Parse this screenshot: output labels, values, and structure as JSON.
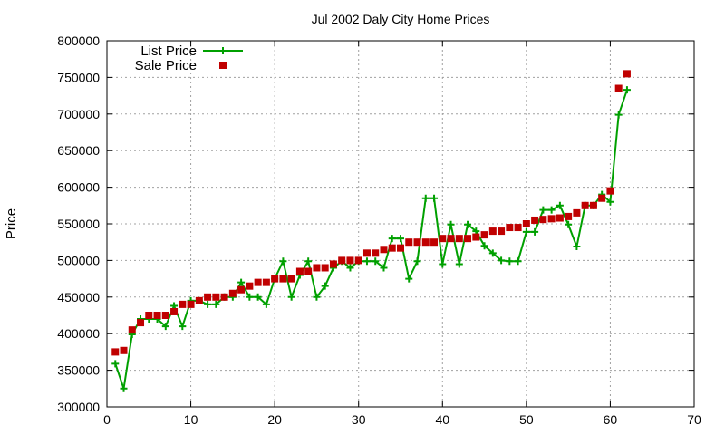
{
  "chart_data": {
    "type": "line",
    "title": "Jul 2002 Daly City Home Prices",
    "xlabel": "",
    "ylabel": "Price",
    "xlim": [
      0,
      70
    ],
    "ylim": [
      300000,
      800000
    ],
    "xticks": [
      0,
      10,
      20,
      30,
      40,
      50,
      60,
      70
    ],
    "yticks": [
      300000,
      350000,
      400000,
      450000,
      500000,
      550000,
      600000,
      650000,
      700000,
      750000,
      800000
    ],
    "grid": true,
    "legend_position": "top-left",
    "series": [
      {
        "name": "List Price",
        "style": "line-plus",
        "color": "#00a000",
        "x": [
          1,
          2,
          3,
          4,
          5,
          6,
          7,
          8,
          9,
          10,
          11,
          12,
          13,
          14,
          15,
          16,
          17,
          18,
          19,
          20,
          21,
          22,
          23,
          24,
          25,
          26,
          27,
          28,
          29,
          30,
          31,
          32,
          33,
          34,
          35,
          36,
          37,
          38,
          39,
          40,
          41,
          42,
          43,
          44,
          45,
          46,
          47,
          48,
          49,
          50,
          51,
          52,
          53,
          54,
          55,
          56,
          57,
          58,
          59,
          60,
          61,
          62
        ],
        "y": [
          359000,
          325000,
          399000,
          420000,
          420000,
          420000,
          410000,
          438000,
          410000,
          445000,
          445000,
          440000,
          440000,
          450000,
          450000,
          470000,
          450000,
          450000,
          440000,
          475000,
          499000,
          450000,
          480000,
          499000,
          450000,
          465000,
          490000,
          499000,
          490000,
          499000,
          499000,
          499000,
          490000,
          530000,
          530000,
          475000,
          499000,
          585000,
          585000,
          495000,
          549000,
          495000,
          549000,
          540000,
          520000,
          510000,
          500000,
          499000,
          499000,
          539000,
          539000,
          569000,
          569000,
          575000,
          549000,
          519000,
          575000,
          575000,
          590000,
          580000,
          699000,
          733000
        ]
      },
      {
        "name": "Sale Price",
        "style": "points-square",
        "color": "#c00000",
        "x": [
          1,
          2,
          3,
          4,
          5,
          6,
          7,
          8,
          9,
          10,
          11,
          12,
          13,
          14,
          15,
          16,
          17,
          18,
          19,
          20,
          21,
          22,
          23,
          24,
          25,
          26,
          27,
          28,
          29,
          30,
          31,
          32,
          33,
          34,
          35,
          36,
          37,
          38,
          39,
          40,
          41,
          42,
          43,
          44,
          45,
          46,
          47,
          48,
          49,
          50,
          51,
          52,
          53,
          54,
          55,
          56,
          57,
          58,
          59,
          60,
          61,
          62
        ],
        "y": [
          375000,
          377000,
          405000,
          415000,
          425000,
          425000,
          425000,
          430000,
          440000,
          440000,
          445000,
          450000,
          450000,
          450000,
          455000,
          460000,
          465000,
          470000,
          470000,
          475000,
          475000,
          475000,
          485000,
          485000,
          490000,
          490000,
          495000,
          500000,
          500000,
          500000,
          510000,
          510000,
          515000,
          517000,
          517000,
          525000,
          525000,
          525000,
          525000,
          530000,
          530000,
          530000,
          530000,
          532000,
          535000,
          540000,
          540000,
          545000,
          545000,
          550000,
          555000,
          556000,
          557000,
          558000,
          560000,
          565000,
          575000,
          575000,
          585000,
          595000,
          735000,
          755000
        ]
      }
    ]
  }
}
